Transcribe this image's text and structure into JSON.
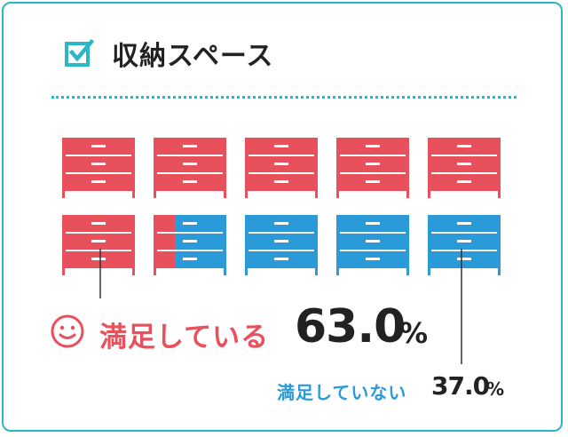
{
  "title": "収納スペース",
  "colors": {
    "accent": "#2bb7c8",
    "satisfied": "#e8505b",
    "unsatisfied": "#2a9ad8"
  },
  "icons": {
    "check": "checkbox-checked-icon",
    "smile": "smile-icon"
  },
  "legend": {
    "satisfied_label": "満足している",
    "satisfied_value": "63.0",
    "satisfied_unit": "%",
    "unsatisfied_label": "満足していない",
    "unsatisfied_value": "37.0",
    "unsatisfied_unit": "%"
  },
  "chart_data": {
    "type": "pictograph",
    "total_icons": 10,
    "series": [
      {
        "name": "満足している",
        "value": 63.0
      },
      {
        "name": "満足していない",
        "value": 37.0
      }
    ]
  }
}
